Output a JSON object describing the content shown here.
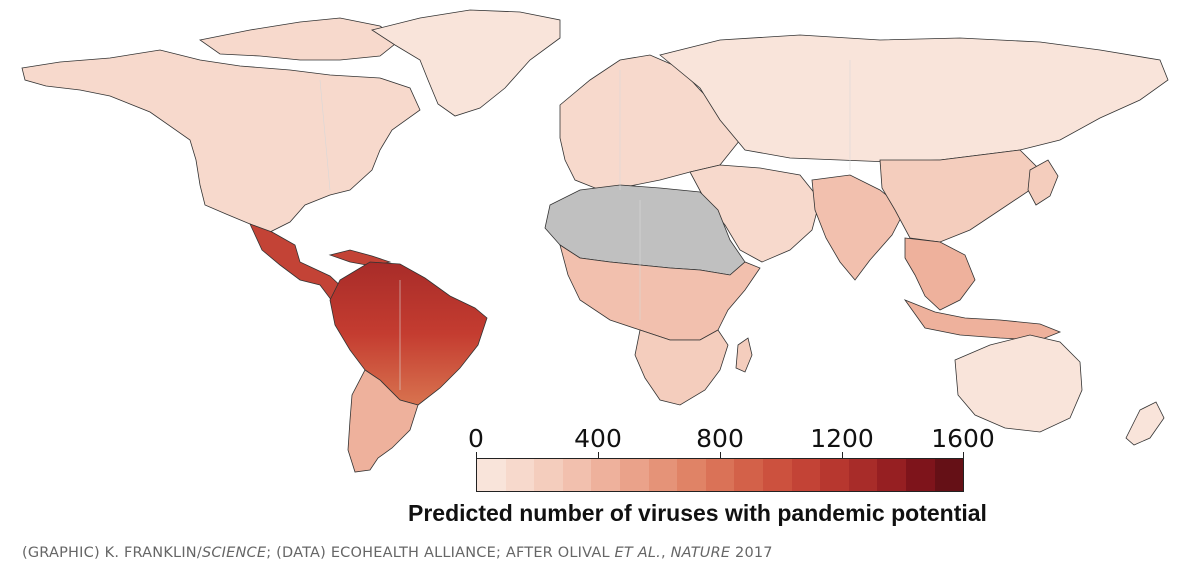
{
  "legend": {
    "ticks": [
      "0",
      "400",
      "800",
      "1200",
      "1600"
    ],
    "title": "Predicted number of viruses with pandemic potential",
    "scale_max": 1600,
    "colors": [
      "#f9e4da",
      "#f7d9cc",
      "#f4cdbd",
      "#f2c0ae",
      "#eeb19c",
      "#eaa28a",
      "#e59378",
      "#e08366",
      "#da7257",
      "#d36149",
      "#cc513e",
      "#c34336",
      "#b7372f",
      "#a82c29",
      "#961f22",
      "#7e141b",
      "#651016"
    ]
  },
  "regions": [
    {
      "name": "north-america",
      "value": 160
    },
    {
      "name": "greenland",
      "value": 40
    },
    {
      "name": "central-america",
      "value": 1050
    },
    {
      "name": "south-america-north",
      "value": 1300
    },
    {
      "name": "south-america-south",
      "value": 380
    },
    {
      "name": "europe",
      "value": 180
    },
    {
      "name": "russia-asia-north",
      "value": 80
    },
    {
      "name": "middle-east",
      "value": 100
    },
    {
      "name": "south-asia",
      "value": 320
    },
    {
      "name": "east-asia",
      "value": 280
    },
    {
      "name": "southeast-asia",
      "value": 450
    },
    {
      "name": "africa-central",
      "value": 350
    },
    {
      "name": "africa-south",
      "value": 220
    },
    {
      "name": "madagascar",
      "value": 280
    },
    {
      "name": "australia",
      "value": 90
    },
    {
      "name": "new-zealand",
      "value": 70
    },
    {
      "name": "indonesia",
      "value": 420
    }
  ],
  "no_data_color": "#c0c0c0",
  "credit": {
    "p1": "(GRAPHIC) K. FRANKLIN/",
    "i1": "SCIENCE",
    "p2": "; (DATA) ECOHEALTH ALLIANCE; AFTER OLIVAL ",
    "i2": "ET AL.",
    "p3": ", ",
    "i3": "NATURE",
    "p4": " 2017"
  }
}
